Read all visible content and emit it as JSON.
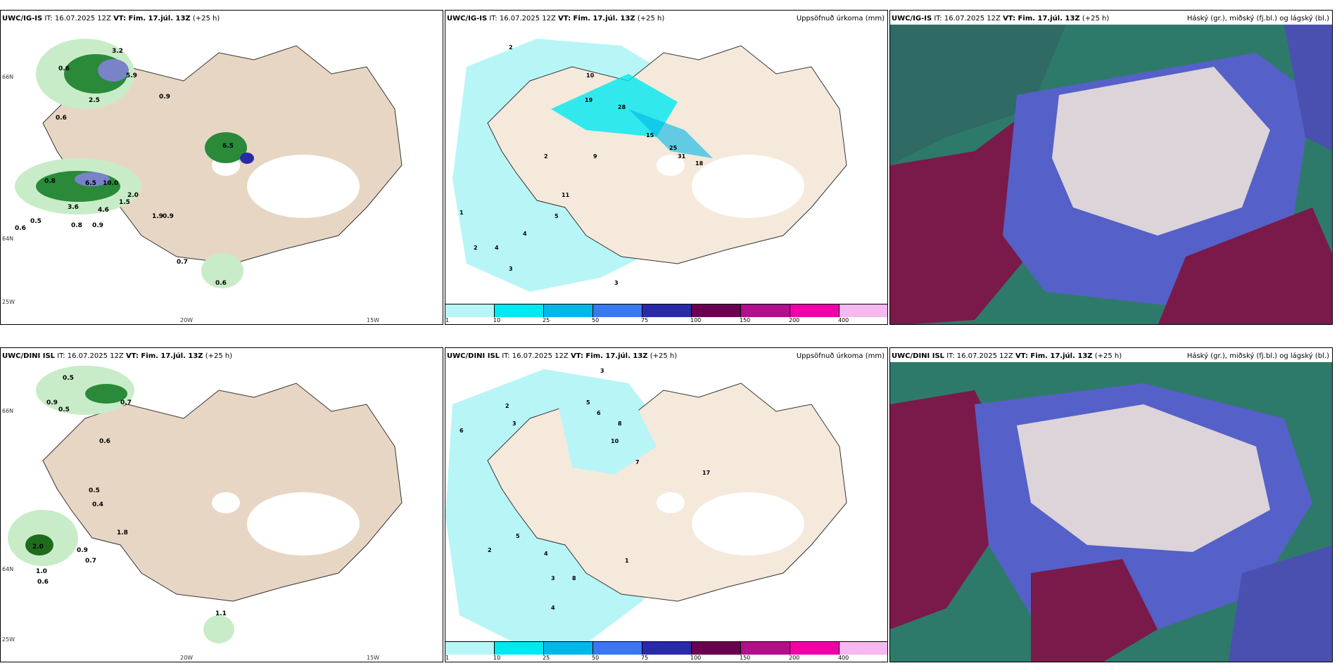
{
  "panels": [
    {
      "id": "p1",
      "model": "UWC/IG-IS",
      "right_title": ""
    },
    {
      "id": "p2",
      "model": "UWC/IG-IS",
      "right_title": "Uppsöfnuð úrkoma (mm)"
    },
    {
      "id": "p3",
      "model": "UWC/IG-IS",
      "right_title": "Háský (gr.), miðský (fj.bl.) og lágský (bl.)"
    },
    {
      "id": "p4",
      "model": "UWC/DINI ISL",
      "right_title": ""
    },
    {
      "id": "p5",
      "model": "UWC/DINI ISL",
      "right_title": "Uppsöfnuð úrkoma (mm)"
    },
    {
      "id": "p6",
      "model": "UWC/DINI ISL",
      "right_title": "Háský (gr.), miðský (fj.bl.) og lágský (bl.)"
    }
  ],
  "it_text": "IT: 16.07.2025 12Z",
  "vt_label": "VT: Fim. 17.júl. 13Z",
  "lead": "(+25 h)",
  "axis_labels": {
    "lat66": "66N",
    "lat64": "64N",
    "lon20": "20W",
    "lon15": "15W",
    "lon25": "25W"
  },
  "legend_ticks": [
    "1",
    "10",
    "25",
    "50",
    "75",
    "100",
    "150",
    "200",
    "400"
  ],
  "legend_colors": [
    "#b8f5f7",
    "#00e8f0",
    "#00b8e8",
    "#3a78f0",
    "#2a2aa8",
    "#6a0050",
    "#b0108a",
    "#f000a8",
    "#f6b8f0"
  ],
  "colors": {
    "land": "#f5e9dc",
    "land_tan": "#e8d6c4",
    "glacier": "#ffffff",
    "precip_light": "#b8f5f7",
    "green_light": "#c8ecc8",
    "green_dark": "#1e6b1e",
    "cloud_high": "#2e7a6a",
    "cloud_mid": "#5560c8",
    "cloud_low": "#8a1a4a"
  },
  "p1_labels": [
    "3.2",
    "5.9",
    "0.6",
    "2.5",
    "0.9",
    "0.6",
    "0.8",
    "6.5",
    "10.0",
    "3.6",
    "4.6",
    "1.5",
    "0.5",
    "0.6",
    "0.9",
    "0.8",
    "0.7",
    "0.6",
    "2.0",
    "1.9",
    "0.9",
    "6.5"
  ],
  "p2_labels": [
    "2",
    "10",
    "19",
    "28",
    "15",
    "25",
    "31",
    "18",
    "2",
    "11",
    "9",
    "4",
    "5",
    "3",
    "2",
    "1",
    "4",
    "3"
  ],
  "p4_labels": [
    "0.5",
    "0.9",
    "0.5",
    "0.6",
    "0.7",
    "0.5",
    "0.4",
    "2.0",
    "0.9",
    "0.7",
    "1.0",
    "0.6",
    "1.1",
    "1.8"
  ],
  "p5_labels": [
    "3",
    "5",
    "6",
    "8",
    "10",
    "7",
    "17",
    "2",
    "3",
    "6",
    "5",
    "4",
    "2",
    "1",
    "3",
    "8",
    "4"
  ]
}
